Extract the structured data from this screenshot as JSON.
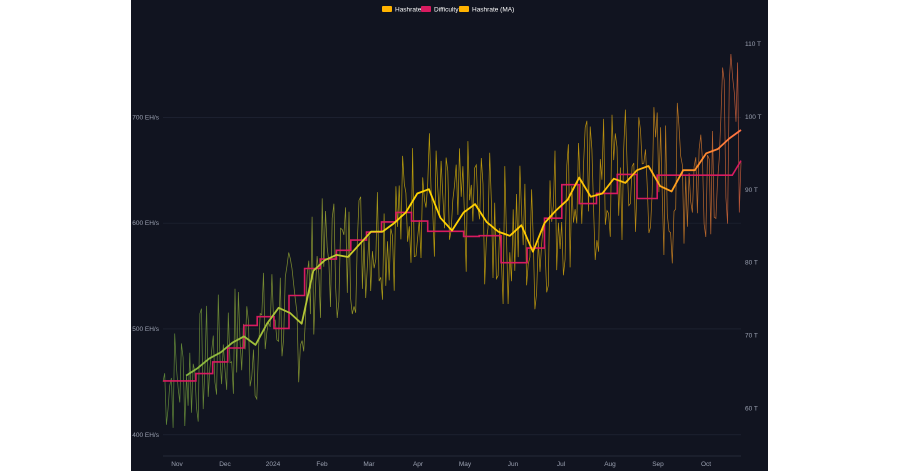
{
  "chart_data": {
    "type": "line",
    "title": "",
    "legend": [
      {
        "name": "Hashrate",
        "color": "#ffb300"
      },
      {
        "name": "Difficulty",
        "color": "#d81b60"
      },
      {
        "name": "Hashrate (MA)",
        "color": "#ffb300"
      }
    ],
    "x_ticks": [
      "Nov",
      "Dec",
      "2024",
      "Feb",
      "Mar",
      "Apr",
      "May",
      "Jun",
      "Jul",
      "Aug",
      "Sep",
      "Oct"
    ],
    "y_left": {
      "ticks": [
        400,
        500,
        600,
        700
      ],
      "tick_labels": [
        "400 EH/s",
        "500 EH/s",
        "600 EH/s",
        "700 EH/s"
      ],
      "range": [
        380,
        790
      ]
    },
    "y_right": {
      "ticks": [
        60,
        70,
        80,
        90,
        100,
        110
      ],
      "tick_labels": [
        "60 T",
        "70 T",
        "80 T",
        "90 T",
        "100 T",
        "110 T"
      ],
      "range": [
        53.5,
        113
      ]
    },
    "series": [
      {
        "name": "Difficulty",
        "axis": "right",
        "x_frac": [
          0.0,
          0.057,
          0.057,
          0.086,
          0.086,
          0.112,
          0.112,
          0.14,
          0.14,
          0.163,
          0.163,
          0.192,
          0.192,
          0.218,
          0.218,
          0.245,
          0.245,
          0.272,
          0.272,
          0.3,
          0.3,
          0.325,
          0.325,
          0.352,
          0.352,
          0.378,
          0.378,
          0.403,
          0.403,
          0.43,
          0.43,
          0.458,
          0.458,
          0.487,
          0.487,
          0.52,
          0.52,
          0.547,
          0.547,
          0.585,
          0.585,
          0.63,
          0.63,
          0.66,
          0.66,
          0.69,
          0.69,
          0.72,
          0.72,
          0.75,
          0.75,
          0.786,
          0.786,
          0.82,
          0.82,
          0.855,
          0.855,
          0.895,
          0.895,
          0.93,
          0.93,
          0.955,
          0.955,
          0.985,
          0.985,
          1.0
        ],
        "values": [
          63.8,
          63.8,
          64.8,
          64.8,
          66.4,
          66.4,
          68.3,
          68.3,
          71.4,
          71.4,
          72.6,
          72.6,
          71.0,
          71.0,
          75.5,
          75.5,
          79.2,
          79.2,
          80.5,
          80.5,
          81.7,
          81.7,
          83.1,
          83.1,
          84.2,
          84.2,
          85.6,
          85.6,
          86.9,
          86.9,
          85.7,
          85.7,
          84.3,
          84.3,
          84.3,
          84.3,
          83.6,
          83.6,
          83.7,
          83.7,
          80.0,
          80.0,
          82.0,
          82.0,
          86.1,
          86.1,
          90.7,
          90.7,
          88.1,
          88.1,
          89.5,
          89.5,
          92.1,
          92.1,
          88.8,
          88.8,
          92.0,
          92.0,
          92.0,
          92.0,
          92.0,
          92.0,
          92.0,
          92.0,
          92.0,
          94.0
        ]
      },
      {
        "name": "Hashrate (MA)",
        "axis": "left",
        "x_frac": [
          0.04,
          0.06,
          0.08,
          0.1,
          0.12,
          0.14,
          0.16,
          0.18,
          0.2,
          0.22,
          0.24,
          0.26,
          0.28,
          0.3,
          0.32,
          0.34,
          0.36,
          0.38,
          0.4,
          0.42,
          0.44,
          0.46,
          0.48,
          0.5,
          0.52,
          0.54,
          0.56,
          0.58,
          0.6,
          0.62,
          0.64,
          0.66,
          0.68,
          0.7,
          0.72,
          0.74,
          0.76,
          0.78,
          0.8,
          0.82,
          0.84,
          0.86,
          0.88,
          0.9,
          0.92,
          0.94,
          0.96,
          0.98,
          1.0
        ],
        "values": [
          456,
          463,
          472,
          478,
          487,
          493,
          485,
          505,
          520,
          515,
          505,
          555,
          565,
          570,
          568,
          580,
          592,
          592,
          600,
          610,
          628,
          632,
          605,
          593,
          610,
          618,
          601,
          592,
          588,
          598,
          573,
          600,
          612,
          622,
          643,
          625,
          628,
          642,
          638,
          650,
          654,
          635,
          630,
          650,
          650,
          666,
          670,
          680,
          688
        ]
      }
    ]
  }
}
